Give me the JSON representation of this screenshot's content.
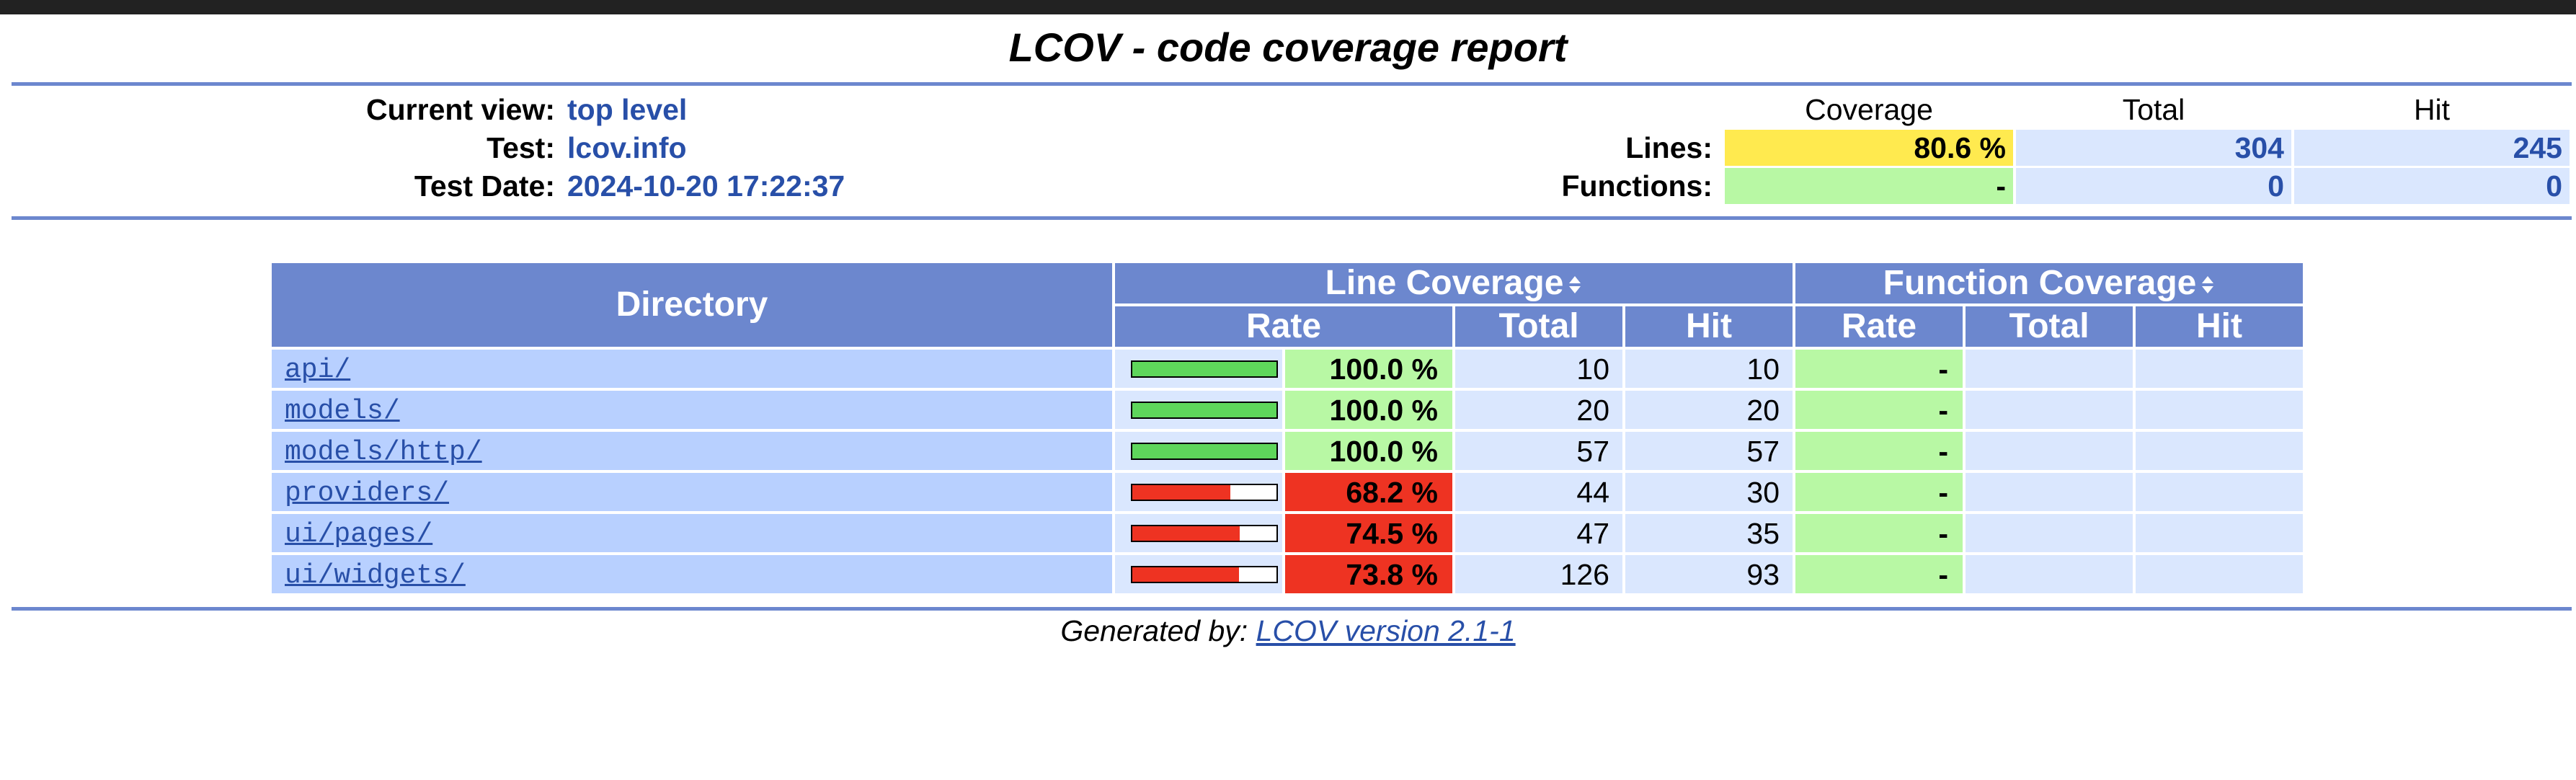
{
  "title": "LCOV - code coverage report",
  "header": {
    "current_view_label": "Current view:",
    "current_view_value": "top level",
    "test_label": "Test:",
    "test_value": "lcov.info",
    "test_date_label": "Test Date:",
    "test_date_value": "2024-10-20 17:22:37"
  },
  "summary": {
    "col_coverage": "Coverage",
    "col_total": "Total",
    "col_hit": "Hit",
    "lines_label": "Lines:",
    "lines_coverage": "80.6 %",
    "lines_total": "304",
    "lines_hit": "245",
    "functions_label": "Functions:",
    "functions_coverage": "-",
    "functions_total": "0",
    "functions_hit": "0"
  },
  "table": {
    "directory_header": "Directory",
    "line_coverage_header": "Line Coverage",
    "function_coverage_header": "Function Coverage",
    "rate": "Rate",
    "total": "Total",
    "hit": "Hit",
    "rows": [
      {
        "dir": "api/",
        "rate": "100.0 %",
        "pct": 100.0,
        "total": "10",
        "hit": "10",
        "frate": "-"
      },
      {
        "dir": "models/",
        "rate": "100.0 %",
        "pct": 100.0,
        "total": "20",
        "hit": "20",
        "frate": "-"
      },
      {
        "dir": "models/http/",
        "rate": "100.0 %",
        "pct": 100.0,
        "total": "57",
        "hit": "57",
        "frate": "-"
      },
      {
        "dir": "providers/",
        "rate": "68.2 %",
        "pct": 68.2,
        "total": "44",
        "hit": "30",
        "frate": "-"
      },
      {
        "dir": "ui/pages/",
        "rate": "74.5 %",
        "pct": 74.5,
        "total": "47",
        "hit": "35",
        "frate": "-"
      },
      {
        "dir": "ui/widgets/",
        "rate": "73.8 %",
        "pct": 73.8,
        "total": "126",
        "hit": "93",
        "frate": "-"
      }
    ]
  },
  "footer": {
    "generated_by": "Generated by: ",
    "lcov_version": "LCOV version 2.1-1"
  },
  "colors": {
    "header_blue": "#6c87ce",
    "hi_green": "#b8f8a4",
    "lo_red": "#ee3322",
    "med_yellow": "#ffea4f",
    "bar_green": "#5ed65b",
    "bar_red": "#ee3322",
    "link_blue": "#284fa8"
  }
}
